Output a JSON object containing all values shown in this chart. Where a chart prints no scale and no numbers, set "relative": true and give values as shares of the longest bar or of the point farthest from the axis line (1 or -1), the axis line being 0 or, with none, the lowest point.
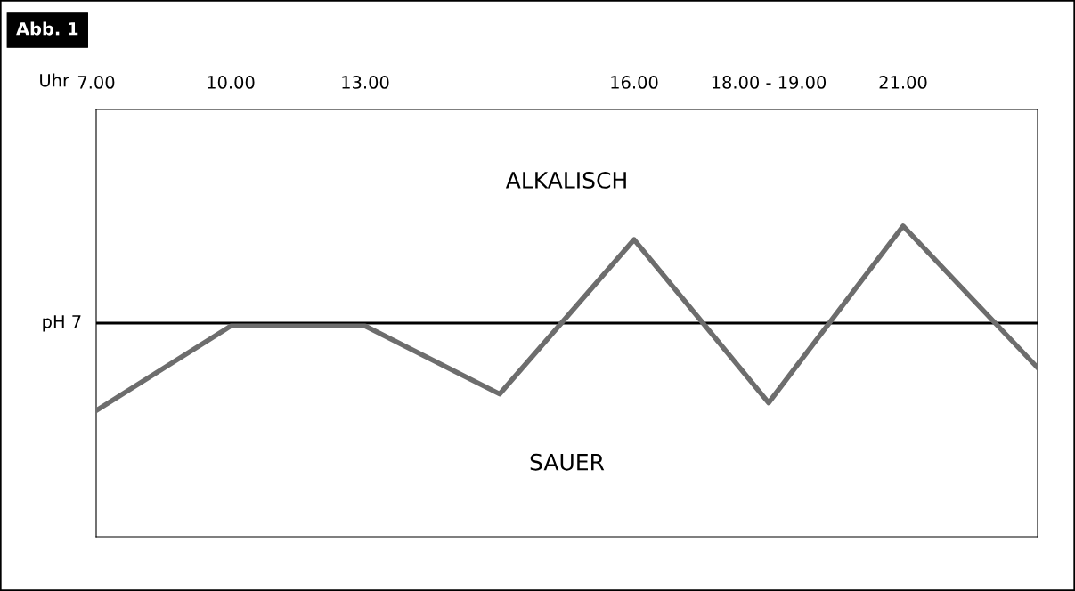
{
  "chart_data": {
    "type": "line",
    "title": "Abb. 1",
    "xlabel": "Uhr",
    "categories": [
      "7.00",
      "10.00",
      "13.00",
      null,
      "16.00",
      "18.00 - 19.00",
      "21.00",
      null
    ],
    "relative": true,
    "series": [
      {
        "color": "#6d6d6d",
        "values": [
          -0.9,
          -0.03,
          -0.03,
          -0.73,
          0.86,
          -0.82,
          1,
          -0.46
        ]
      }
    ],
    "ref_lines": [
      {
        "axis": "y",
        "value": 0,
        "label": "pH 7",
        "color": "#000000",
        "line_style": "solid"
      }
    ],
    "annotations": [
      "ALKALISCH",
      "SAUER"
    ],
    "grid": false,
    "marker": "none",
    "line_style": "solid"
  }
}
